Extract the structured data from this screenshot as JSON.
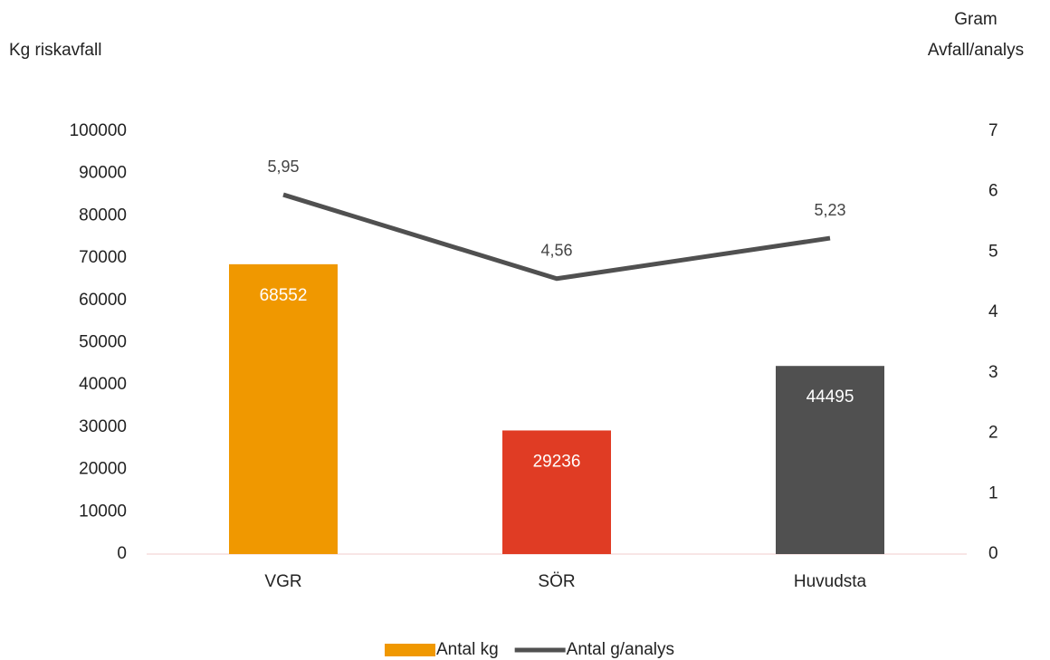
{
  "chart_data": {
    "type": "combo",
    "ylabel": "Kg riskavfall",
    "y2label": [
      "Gram",
      "Avfall/analys"
    ],
    "categories": [
      "VGR",
      "SÖR",
      "Huvudsta"
    ],
    "series": [
      {
        "name": "Antal kg",
        "type": "bar",
        "color": "#F09800",
        "colors": [
          "#F09800",
          "#E03C24",
          "#505050"
        ],
        "values": [
          68552,
          29236,
          44495
        ]
      },
      {
        "name": "Antal g/analys",
        "type": "line",
        "axis": "y2",
        "color": "#505050",
        "values": [
          5.95,
          4.56,
          5.23
        ],
        "value_labels": [
          "5,95",
          "4,56",
          "5,23"
        ]
      }
    ],
    "ylim": [
      0,
      100000
    ],
    "yticks": [
      0,
      10000,
      20000,
      30000,
      40000,
      50000,
      60000,
      70000,
      80000,
      90000,
      100000
    ],
    "y2lim": [
      0,
      7
    ],
    "y2ticks": [
      0,
      1,
      2,
      3,
      4,
      5,
      6,
      7
    ],
    "legend": "bottom"
  }
}
